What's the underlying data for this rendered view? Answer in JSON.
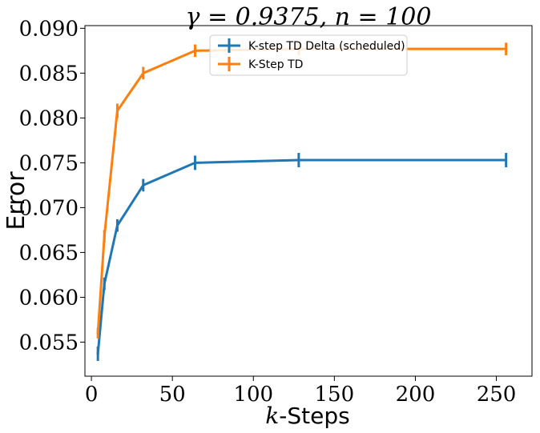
{
  "chart_data": {
    "type": "line",
    "title": "γ = 0.9375, n = 100",
    "xlabel_italic": "k",
    "xlabel_rest": "-Steps",
    "ylabel": "Error",
    "xlim": [
      -4,
      272
    ],
    "ylim": [
      0.0512,
      0.0903
    ],
    "xticks": [
      0,
      50,
      100,
      150,
      200,
      250
    ],
    "yticks": [
      0.055,
      0.06,
      0.065,
      0.07,
      0.075,
      0.08,
      0.085,
      0.09
    ],
    "ytick_labels": [
      "0.055",
      "0.060",
      "0.065",
      "0.070",
      "0.075",
      "0.080",
      "0.085",
      "0.090"
    ],
    "grid": false,
    "legend_position": "top-center",
    "series": [
      {
        "name": "K-step TD Delta (scheduled)",
        "color": "#1f77b4",
        "x": [
          4,
          8,
          16,
          32,
          64,
          128,
          256
        ],
        "y": [
          0.0537,
          0.0615,
          0.068,
          0.0725,
          0.075,
          0.0753,
          0.0753
        ],
        "err": [
          0.0008,
          0.0007,
          0.0007,
          0.0007,
          0.0008,
          0.0008,
          0.0008
        ]
      },
      {
        "name": "K-Step TD",
        "color": "#ff7f0e",
        "x": [
          4,
          8,
          16,
          32,
          64,
          128,
          256
        ],
        "y": [
          0.056,
          0.0668,
          0.0808,
          0.085,
          0.0875,
          0.0877,
          0.0877
        ],
        "err": [
          0.0006,
          0.0007,
          0.0008,
          0.0007,
          0.0007,
          0.0007,
          0.0007
        ]
      }
    ]
  }
}
